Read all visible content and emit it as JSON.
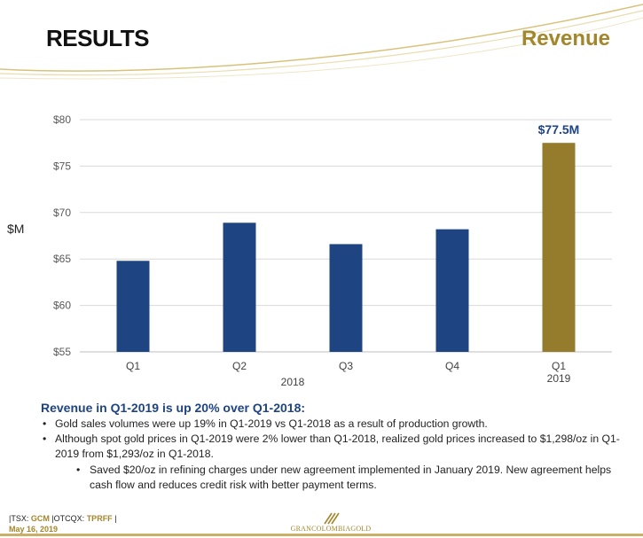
{
  "header": {
    "title": "RESULTS",
    "section": "Revenue"
  },
  "colors": {
    "bar_2018": "#1f4482",
    "bar_2019": "#957b2c",
    "accent_gold": "#a3862c",
    "heading_blue": "#1f4482"
  },
  "chart_data": {
    "type": "bar",
    "ylabel": "$M",
    "ylim": [
      55,
      80
    ],
    "yticks": [
      "$55",
      "$60",
      "$65",
      "$70",
      "$75",
      "$80"
    ],
    "ytick_values": [
      55,
      60,
      65,
      70,
      75,
      80
    ],
    "grid": true,
    "categories": [
      "Q1",
      "Q2",
      "Q3",
      "Q4",
      "Q1"
    ],
    "years": [
      "2018",
      "2018",
      "2018",
      "2018",
      "2019"
    ],
    "year_groups": [
      {
        "label": "2018",
        "categories": [
          "Q1",
          "Q2",
          "Q3",
          "Q4"
        ]
      },
      {
        "label": "2019",
        "categories": [
          "Q1"
        ]
      }
    ],
    "values": [
      64.8,
      68.9,
      66.6,
      68.2,
      77.5
    ],
    "highlight_index": 4,
    "data_labels": [
      {
        "index": 4,
        "text": "$77.5M"
      }
    ]
  },
  "summary": {
    "heading": "Revenue in Q1-2019 is up 20% over Q1-2018:",
    "bullets": [
      "Gold sales volumes were up 19% in Q1-2019 vs Q1-2018 as a result of production growth.",
      "Although spot gold prices in Q1-2019 were 2% lower than Q1-2018, realized gold prices increased to $1,298/oz in Q1-2019 from $1,293/oz in Q1-2018."
    ],
    "sub_bullet": "Saved $20/oz in refining charges under new agreement implemented in January 2019. New agreement helps cash flow and reduces credit risk with better payment terms."
  },
  "footer": {
    "tsx_prefix": "|TSX: ",
    "tsx_ticker": "GCM",
    "otc_prefix": " |OTCQX: ",
    "otc_ticker": "TPRFF",
    "otc_suffix": " |",
    "date": "May 16, 2019",
    "logo_text": "GRANCOLOMBIAGOLD"
  }
}
